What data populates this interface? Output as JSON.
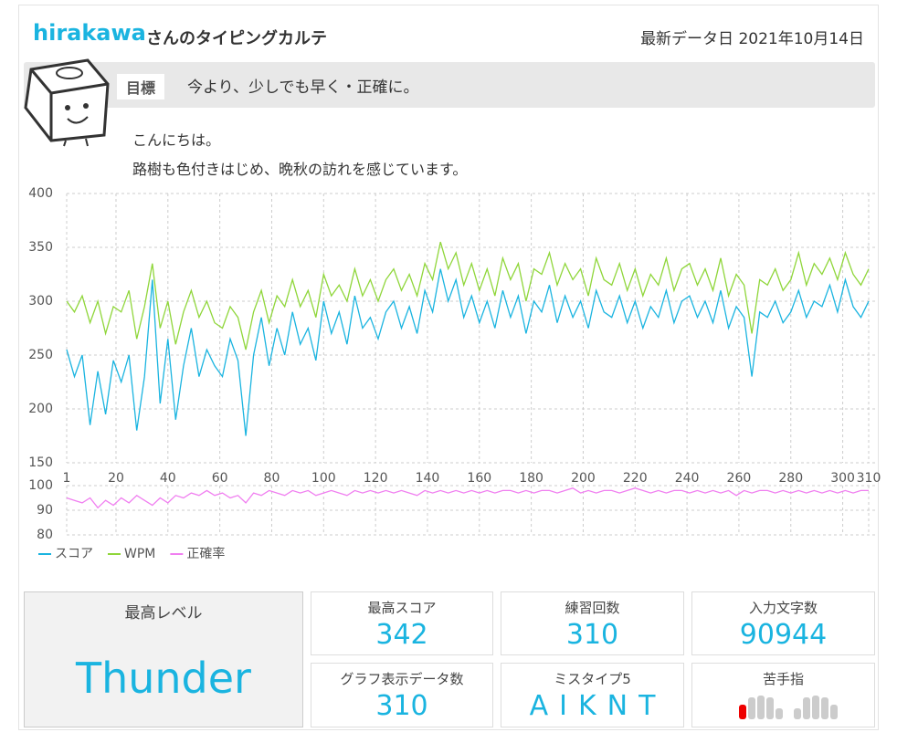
{
  "header": {
    "user": "hirakawa",
    "suffix": "さんのタイピングカルテ",
    "date_label": "最新データ日",
    "date": "2021年10月14日"
  },
  "goal": {
    "label": "目標",
    "text": "今より、少しでも早く・正確に。"
  },
  "message": [
    "こんにちは。",
    "路樹も色付きはじめ、晩秋の訪れを感じています。"
  ],
  "chart_data": [
    {
      "type": "line",
      "xlim": [
        1,
        310
      ],
      "xticks": [
        1,
        20,
        40,
        60,
        80,
        100,
        120,
        140,
        160,
        180,
        200,
        220,
        240,
        260,
        280,
        300,
        310
      ],
      "ylim": [
        150,
        400
      ],
      "yticks": [
        150,
        200,
        250,
        300,
        350,
        400
      ],
      "grid": true,
      "x": [
        1,
        4,
        7,
        10,
        13,
        16,
        19,
        22,
        25,
        28,
        31,
        34,
        37,
        40,
        43,
        46,
        49,
        52,
        55,
        58,
        61,
        64,
        67,
        70,
        73,
        76,
        79,
        82,
        85,
        88,
        91,
        94,
        97,
        100,
        103,
        106,
        109,
        112,
        115,
        118,
        121,
        124,
        127,
        130,
        133,
        136,
        139,
        142,
        145,
        148,
        151,
        154,
        157,
        160,
        163,
        166,
        169,
        172,
        175,
        178,
        181,
        184,
        187,
        190,
        193,
        196,
        199,
        202,
        205,
        208,
        211,
        214,
        217,
        220,
        223,
        226,
        229,
        232,
        235,
        238,
        241,
        244,
        247,
        250,
        253,
        256,
        259,
        262,
        265,
        268,
        271,
        274,
        277,
        280,
        283,
        286,
        289,
        292,
        295,
        298,
        301,
        304,
        307,
        310
      ],
      "series": [
        {
          "name": "スコア",
          "color": "#1ab4e0",
          "values": [
            255,
            230,
            250,
            185,
            235,
            195,
            245,
            225,
            250,
            180,
            230,
            320,
            205,
            265,
            190,
            240,
            275,
            230,
            255,
            240,
            230,
            265,
            245,
            175,
            250,
            285,
            240,
            275,
            250,
            290,
            260,
            275,
            245,
            300,
            270,
            290,
            260,
            305,
            275,
            285,
            265,
            290,
            300,
            275,
            295,
            270,
            310,
            290,
            330,
            300,
            320,
            285,
            305,
            280,
            300,
            275,
            310,
            285,
            305,
            270,
            300,
            290,
            315,
            280,
            305,
            285,
            300,
            275,
            310,
            290,
            285,
            305,
            280,
            300,
            275,
            295,
            285,
            310,
            280,
            300,
            305,
            285,
            300,
            280,
            310,
            275,
            295,
            285,
            230,
            290,
            285,
            300,
            280,
            290,
            310,
            285,
            300,
            295,
            315,
            290,
            320,
            295,
            285,
            300
          ]
        },
        {
          "name": "WPM",
          "color": "#8fd63a",
          "values": [
            300,
            290,
            305,
            280,
            300,
            270,
            295,
            290,
            310,
            265,
            295,
            335,
            275,
            300,
            260,
            290,
            310,
            285,
            300,
            280,
            275,
            295,
            285,
            255,
            290,
            310,
            280,
            305,
            295,
            320,
            295,
            310,
            285,
            325,
            305,
            315,
            300,
            330,
            305,
            320,
            300,
            320,
            330,
            310,
            325,
            305,
            335,
            320,
            355,
            330,
            345,
            315,
            335,
            310,
            330,
            305,
            340,
            320,
            335,
            300,
            330,
            325,
            345,
            315,
            335,
            320,
            330,
            305,
            340,
            320,
            315,
            335,
            310,
            330,
            305,
            325,
            315,
            340,
            310,
            330,
            335,
            315,
            330,
            310,
            340,
            305,
            325,
            315,
            270,
            320,
            315,
            330,
            310,
            320,
            345,
            315,
            335,
            325,
            340,
            320,
            345,
            325,
            315,
            330
          ]
        }
      ]
    },
    {
      "type": "line",
      "ylim": [
        80,
        100
      ],
      "yticks": [
        80,
        90,
        100
      ],
      "grid": true,
      "series": [
        {
          "name": "正確率",
          "color": "#f07ff0",
          "values": [
            95,
            94,
            93,
            95,
            91,
            94,
            92,
            95,
            93,
            96,
            94,
            92,
            95,
            93,
            96,
            95,
            97,
            96,
            98,
            96,
            97,
            95,
            96,
            93,
            97,
            96,
            98,
            97,
            96,
            98,
            97,
            98,
            96,
            97,
            98,
            97,
            96,
            98,
            97,
            98,
            97,
            98,
            97,
            98,
            97,
            96,
            98,
            97,
            98,
            97,
            98,
            97,
            98,
            97,
            98,
            97,
            98,
            98,
            97,
            98,
            97,
            98,
            98,
            97,
            98,
            99,
            97,
            98,
            97,
            98,
            98,
            97,
            98,
            99,
            98,
            97,
            98,
            97,
            98,
            98,
            97,
            98,
            97,
            98,
            97,
            98,
            96,
            98,
            97,
            98,
            98,
            97,
            98,
            97,
            98,
            97,
            98,
            97,
            98,
            97,
            98,
            97,
            98,
            98
          ]
        }
      ]
    }
  ],
  "stats": [
    {
      "label": "最高レベル",
      "value": "Thunder"
    },
    {
      "label": "最高スコア",
      "value": 342
    },
    {
      "label": "練習回数",
      "value": 310
    },
    {
      "label": "入力文字数",
      "value": 90944
    },
    {
      "label": "グラフ表示データ数",
      "value": 310
    },
    {
      "label": "ミスタイプ5",
      "value": "AIKNT"
    }
  ],
  "weak_fingers": {
    "label": "苦手指"
  }
}
